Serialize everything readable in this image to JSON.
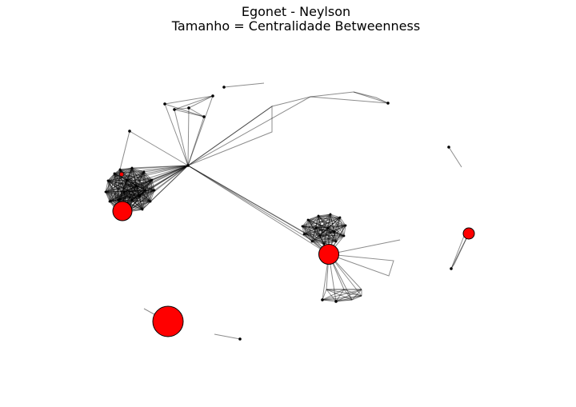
{
  "figure": {
    "title_line1": "Egonet - Neylson",
    "title_line2": "Tamanho = Centralidade Betweenness"
  },
  "graph": {
    "node_color": "#ff0000",
    "edge_color": "#000000",
    "small_node_color": "#000000"
  }
}
